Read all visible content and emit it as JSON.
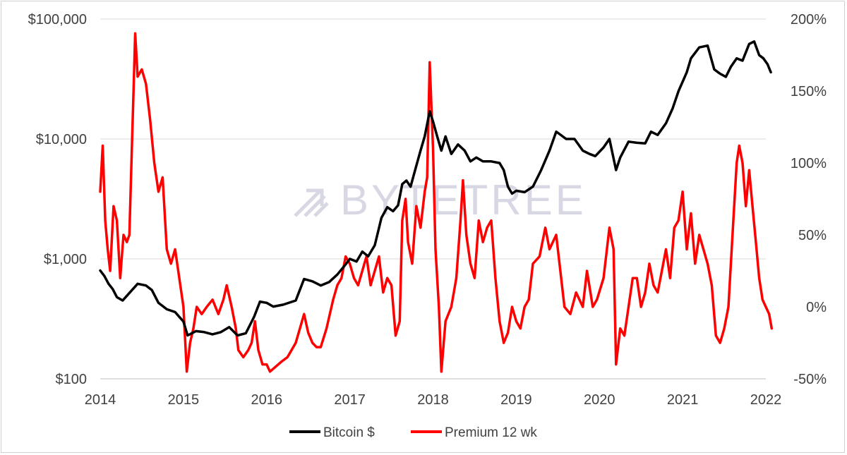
{
  "chart_data": {
    "type": "line",
    "title": "",
    "watermark": "BYTETREE",
    "x": {
      "range": [
        2014.0,
        2022.0
      ],
      "ticks": [
        "2014",
        "2015",
        "2016",
        "2017",
        "2018",
        "2019",
        "2020",
        "2021",
        "2022"
      ]
    },
    "y_left": {
      "scale": "log",
      "range": [
        100,
        100000
      ],
      "ticks": [
        100,
        1000,
        10000,
        100000
      ],
      "tick_labels": [
        "$100",
        "$1,000",
        "$10,000",
        "$100,000"
      ]
    },
    "y_right": {
      "scale": "linear",
      "range": [
        -50,
        200
      ],
      "ticks": [
        -50,
        0,
        50,
        100,
        150,
        200
      ],
      "tick_labels": [
        "-50%",
        "0%",
        "50%",
        "100%",
        "150%",
        "200%"
      ]
    },
    "grid": true,
    "legend_position": "bottom",
    "series": [
      {
        "name": "Bitcoin $",
        "axis": "left",
        "color": "#000000",
        "points": [
          [
            2014.0,
            800
          ],
          [
            2014.05,
            720
          ],
          [
            2014.1,
            620
          ],
          [
            2014.15,
            560
          ],
          [
            2014.2,
            480
          ],
          [
            2014.27,
            450
          ],
          [
            2014.35,
            520
          ],
          [
            2014.45,
            620
          ],
          [
            2014.55,
            600
          ],
          [
            2014.62,
            550
          ],
          [
            2014.7,
            430
          ],
          [
            2014.8,
            380
          ],
          [
            2014.9,
            360
          ],
          [
            2015.0,
            300
          ],
          [
            2015.05,
            230
          ],
          [
            2015.15,
            250
          ],
          [
            2015.25,
            245
          ],
          [
            2015.35,
            235
          ],
          [
            2015.45,
            245
          ],
          [
            2015.55,
            270
          ],
          [
            2015.65,
            230
          ],
          [
            2015.75,
            240
          ],
          [
            2015.85,
            330
          ],
          [
            2015.92,
            440
          ],
          [
            2016.0,
            430
          ],
          [
            2016.08,
            400
          ],
          [
            2016.2,
            415
          ],
          [
            2016.35,
            450
          ],
          [
            2016.45,
            680
          ],
          [
            2016.55,
            650
          ],
          [
            2016.65,
            600
          ],
          [
            2016.75,
            640
          ],
          [
            2016.85,
            740
          ],
          [
            2016.95,
            900
          ],
          [
            2017.0,
            1000
          ],
          [
            2017.08,
            950
          ],
          [
            2017.15,
            1150
          ],
          [
            2017.22,
            1050
          ],
          [
            2017.3,
            1300
          ],
          [
            2017.38,
            2200
          ],
          [
            2017.45,
            2700
          ],
          [
            2017.52,
            2500
          ],
          [
            2017.58,
            2800
          ],
          [
            2017.63,
            4200
          ],
          [
            2017.68,
            4500
          ],
          [
            2017.73,
            4000
          ],
          [
            2017.8,
            6000
          ],
          [
            2017.85,
            8000
          ],
          [
            2017.9,
            10500
          ],
          [
            2017.96,
            17000
          ],
          [
            2018.0,
            14000
          ],
          [
            2018.05,
            10500
          ],
          [
            2018.1,
            8000
          ],
          [
            2018.15,
            10500
          ],
          [
            2018.22,
            7500
          ],
          [
            2018.3,
            9000
          ],
          [
            2018.38,
            8000
          ],
          [
            2018.45,
            6500
          ],
          [
            2018.52,
            7000
          ],
          [
            2018.6,
            6500
          ],
          [
            2018.7,
            6500
          ],
          [
            2018.8,
            6300
          ],
          [
            2018.85,
            5500
          ],
          [
            2018.9,
            4000
          ],
          [
            2018.95,
            3500
          ],
          [
            2019.0,
            3700
          ],
          [
            2019.1,
            3600
          ],
          [
            2019.2,
            4000
          ],
          [
            2019.3,
            5500
          ],
          [
            2019.4,
            8000
          ],
          [
            2019.48,
            11500
          ],
          [
            2019.52,
            11000
          ],
          [
            2019.6,
            10000
          ],
          [
            2019.7,
            10000
          ],
          [
            2019.8,
            8000
          ],
          [
            2019.88,
            7500
          ],
          [
            2019.95,
            7200
          ],
          [
            2020.05,
            8500
          ],
          [
            2020.12,
            10000
          ],
          [
            2020.2,
            5500
          ],
          [
            2020.25,
            7000
          ],
          [
            2020.35,
            9500
          ],
          [
            2020.45,
            9300
          ],
          [
            2020.55,
            9200
          ],
          [
            2020.62,
            11500
          ],
          [
            2020.7,
            10800
          ],
          [
            2020.8,
            13500
          ],
          [
            2020.88,
            18000
          ],
          [
            2020.95,
            25000
          ],
          [
            2021.05,
            36000
          ],
          [
            2021.1,
            47000
          ],
          [
            2021.2,
            58000
          ],
          [
            2021.3,
            60000
          ],
          [
            2021.38,
            38000
          ],
          [
            2021.45,
            35000
          ],
          [
            2021.52,
            33000
          ],
          [
            2021.58,
            40000
          ],
          [
            2021.65,
            47000
          ],
          [
            2021.72,
            45000
          ],
          [
            2021.8,
            62000
          ],
          [
            2021.86,
            65000
          ],
          [
            2021.92,
            50000
          ],
          [
            2021.97,
            47000
          ],
          [
            2022.02,
            42000
          ],
          [
            2022.06,
            36000
          ]
        ]
      },
      {
        "name": "Premium 12 wk",
        "axis": "right",
        "color": "#ff0000",
        "points": [
          [
            2014.0,
            80
          ],
          [
            2014.03,
            112
          ],
          [
            2014.06,
            60
          ],
          [
            2014.09,
            40
          ],
          [
            2014.12,
            25
          ],
          [
            2014.16,
            70
          ],
          [
            2014.2,
            60
          ],
          [
            2014.24,
            20
          ],
          [
            2014.28,
            50
          ],
          [
            2014.32,
            45
          ],
          [
            2014.35,
            50
          ],
          [
            2014.38,
            110
          ],
          [
            2014.4,
            150
          ],
          [
            2014.42,
            190
          ],
          [
            2014.45,
            160
          ],
          [
            2014.5,
            165
          ],
          [
            2014.55,
            155
          ],
          [
            2014.6,
            130
          ],
          [
            2014.65,
            100
          ],
          [
            2014.7,
            80
          ],
          [
            2014.75,
            90
          ],
          [
            2014.8,
            40
          ],
          [
            2014.85,
            30
          ],
          [
            2014.9,
            40
          ],
          [
            2014.95,
            20
          ],
          [
            2015.0,
            0
          ],
          [
            2015.04,
            -45
          ],
          [
            2015.08,
            -25
          ],
          [
            2015.12,
            -15
          ],
          [
            2015.16,
            0
          ],
          [
            2015.22,
            -5
          ],
          [
            2015.28,
            0
          ],
          [
            2015.35,
            5
          ],
          [
            2015.42,
            -5
          ],
          [
            2015.48,
            5
          ],
          [
            2015.52,
            15
          ],
          [
            2015.58,
            0
          ],
          [
            2015.63,
            -15
          ],
          [
            2015.66,
            -30
          ],
          [
            2015.72,
            -35
          ],
          [
            2015.78,
            -30
          ],
          [
            2015.82,
            -25
          ],
          [
            2015.86,
            -10
          ],
          [
            2015.9,
            -30
          ],
          [
            2015.95,
            -40
          ],
          [
            2016.0,
            -40
          ],
          [
            2016.04,
            -45
          ],
          [
            2016.1,
            -42
          ],
          [
            2016.18,
            -38
          ],
          [
            2016.25,
            -35
          ],
          [
            2016.3,
            -30
          ],
          [
            2016.35,
            -25
          ],
          [
            2016.4,
            -15
          ],
          [
            2016.45,
            -5
          ],
          [
            2016.5,
            -18
          ],
          [
            2016.55,
            -25
          ],
          [
            2016.6,
            -28
          ],
          [
            2016.65,
            -28
          ],
          [
            2016.72,
            -15
          ],
          [
            2016.8,
            5
          ],
          [
            2016.85,
            15
          ],
          [
            2016.9,
            20
          ],
          [
            2016.95,
            35
          ],
          [
            2017.0,
            30
          ],
          [
            2017.05,
            20
          ],
          [
            2017.1,
            15
          ],
          [
            2017.15,
            25
          ],
          [
            2017.2,
            35
          ],
          [
            2017.25,
            15
          ],
          [
            2017.3,
            25
          ],
          [
            2017.35,
            35
          ],
          [
            2017.4,
            10
          ],
          [
            2017.45,
            20
          ],
          [
            2017.5,
            15
          ],
          [
            2017.55,
            -20
          ],
          [
            2017.6,
            -10
          ],
          [
            2017.63,
            60
          ],
          [
            2017.67,
            75
          ],
          [
            2017.7,
            45
          ],
          [
            2017.75,
            30
          ],
          [
            2017.8,
            70
          ],
          [
            2017.85,
            55
          ],
          [
            2017.9,
            80
          ],
          [
            2017.93,
            90
          ],
          [
            2017.96,
            170
          ],
          [
            2018.0,
            110
          ],
          [
            2018.03,
            40
          ],
          [
            2018.07,
            0
          ],
          [
            2018.1,
            -45
          ],
          [
            2018.15,
            -10
          ],
          [
            2018.22,
            0
          ],
          [
            2018.28,
            20
          ],
          [
            2018.33,
            60
          ],
          [
            2018.36,
            88
          ],
          [
            2018.4,
            50
          ],
          [
            2018.45,
            30
          ],
          [
            2018.5,
            20
          ],
          [
            2018.55,
            60
          ],
          [
            2018.6,
            45
          ],
          [
            2018.65,
            55
          ],
          [
            2018.7,
            60
          ],
          [
            2018.75,
            20
          ],
          [
            2018.8,
            -10
          ],
          [
            2018.85,
            -25
          ],
          [
            2018.9,
            -18
          ],
          [
            2018.95,
            0
          ],
          [
            2019.0,
            -10
          ],
          [
            2019.05,
            -15
          ],
          [
            2019.1,
            0
          ],
          [
            2019.15,
            5
          ],
          [
            2019.2,
            30
          ],
          [
            2019.28,
            35
          ],
          [
            2019.35,
            55
          ],
          [
            2019.4,
            40
          ],
          [
            2019.48,
            50
          ],
          [
            2019.52,
            30
          ],
          [
            2019.58,
            0
          ],
          [
            2019.65,
            -5
          ],
          [
            2019.72,
            10
          ],
          [
            2019.8,
            0
          ],
          [
            2019.85,
            25
          ],
          [
            2019.92,
            0
          ],
          [
            2019.97,
            5
          ],
          [
            2020.05,
            20
          ],
          [
            2020.12,
            55
          ],
          [
            2020.17,
            40
          ],
          [
            2020.2,
            -40
          ],
          [
            2020.25,
            -15
          ],
          [
            2020.3,
            -20
          ],
          [
            2020.35,
            0
          ],
          [
            2020.4,
            20
          ],
          [
            2020.45,
            20
          ],
          [
            2020.5,
            0
          ],
          [
            2020.55,
            10
          ],
          [
            2020.6,
            30
          ],
          [
            2020.65,
            15
          ],
          [
            2020.7,
            10
          ],
          [
            2020.75,
            25
          ],
          [
            2020.8,
            40
          ],
          [
            2020.85,
            20
          ],
          [
            2020.9,
            55
          ],
          [
            2020.95,
            60
          ],
          [
            2021.0,
            80
          ],
          [
            2021.05,
            40
          ],
          [
            2021.1,
            65
          ],
          [
            2021.15,
            30
          ],
          [
            2021.2,
            50
          ],
          [
            2021.25,
            40
          ],
          [
            2021.3,
            30
          ],
          [
            2021.35,
            15
          ],
          [
            2021.4,
            -20
          ],
          [
            2021.45,
            -25
          ],
          [
            2021.5,
            -15
          ],
          [
            2021.55,
            0
          ],
          [
            2021.6,
            50
          ],
          [
            2021.65,
            100
          ],
          [
            2021.68,
            112
          ],
          [
            2021.72,
            100
          ],
          [
            2021.76,
            70
          ],
          [
            2021.8,
            95
          ],
          [
            2021.84,
            70
          ],
          [
            2021.88,
            45
          ],
          [
            2021.92,
            20
          ],
          [
            2021.96,
            5
          ],
          [
            2022.0,
            0
          ],
          [
            2022.04,
            -5
          ],
          [
            2022.07,
            -15
          ]
        ]
      }
    ]
  }
}
